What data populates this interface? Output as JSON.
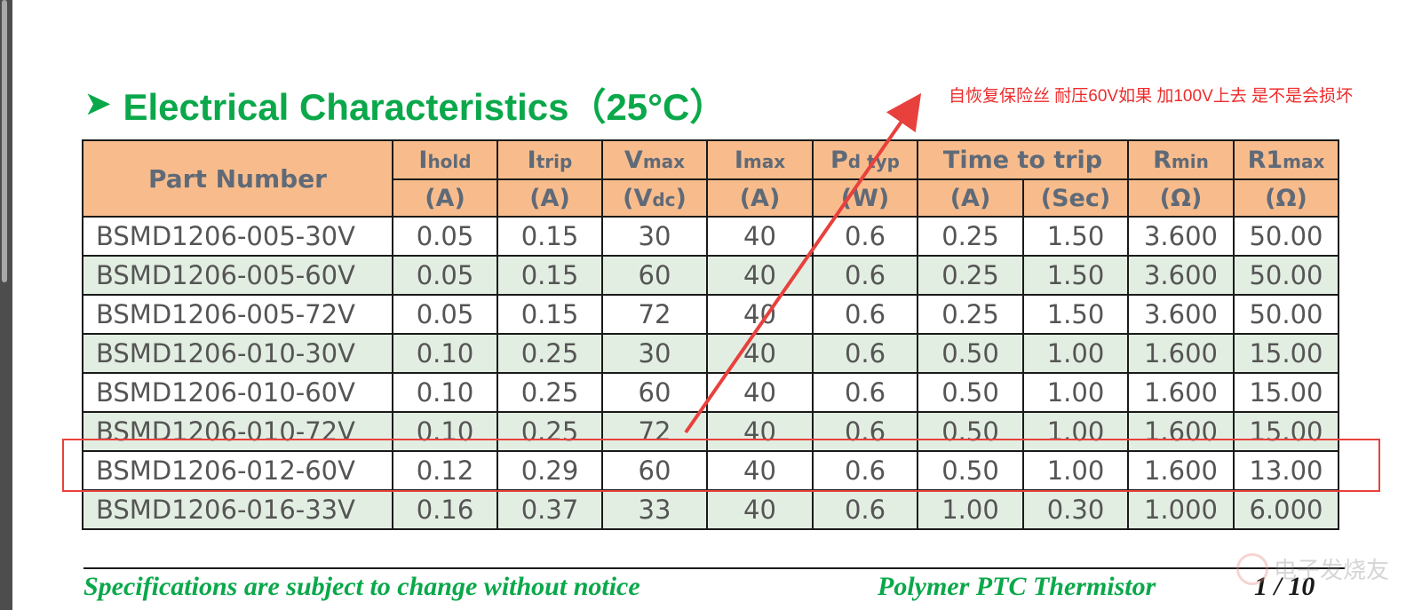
{
  "heading": {
    "bullet": "➤",
    "title": "Electrical Characteristics（25°C）"
  },
  "annotation_note": "自恢复保险丝 耐压60V如果 加100V上去  是不是会损坏",
  "table": {
    "header_row1": {
      "part_number": "Part Number",
      "ihold": {
        "main": "I",
        "sub": "hold"
      },
      "itrip": {
        "main": "I",
        "sub": "trip"
      },
      "vmax": {
        "main": "V",
        "sub": "max"
      },
      "imax": {
        "main": "I",
        "sub": "max"
      },
      "pd": {
        "main": "P",
        "sub": "d typ"
      },
      "time_to_trip": "Time to trip",
      "rmin": {
        "main": "R",
        "sub": "min"
      },
      "r1max": {
        "main": "R1",
        "sub": "max"
      }
    },
    "header_row2": {
      "ihold_unit": "(A)",
      "itrip_unit": "(A)",
      "vmax_unit": {
        "pre": "(V",
        "sub": "dc",
        "post": ")"
      },
      "imax_unit": "(A)",
      "pd_unit": "(W)",
      "ttt_current_unit": "(A)",
      "ttt_time_unit": "(Sec)",
      "rmin_unit": "(Ω)",
      "r1max_unit": "(Ω)"
    },
    "rows": [
      [
        "BSMD1206-005-30V",
        "0.05",
        "0.15",
        "30",
        "40",
        "0.6",
        "0.25",
        "1.50",
        "3.600",
        "50.00"
      ],
      [
        "BSMD1206-005-60V",
        "0.05",
        "0.15",
        "60",
        "40",
        "0.6",
        "0.25",
        "1.50",
        "3.600",
        "50.00"
      ],
      [
        "BSMD1206-005-72V",
        "0.05",
        "0.15",
        "72",
        "40",
        "0.6",
        "0.25",
        "1.50",
        "3.600",
        "50.00"
      ],
      [
        "BSMD1206-010-30V",
        "0.10",
        "0.25",
        "30",
        "40",
        "0.6",
        "0.50",
        "1.00",
        "1.600",
        "15.00"
      ],
      [
        "BSMD1206-010-60V",
        "0.10",
        "0.25",
        "60",
        "40",
        "0.6",
        "0.50",
        "1.00",
        "1.600",
        "15.00"
      ],
      [
        "BSMD1206-010-72V",
        "0.10",
        "0.25",
        "72",
        "40",
        "0.6",
        "0.50",
        "1.00",
        "1.600",
        "15.00"
      ],
      [
        "BSMD1206-012-60V",
        "0.12",
        "0.29",
        "60",
        "40",
        "0.6",
        "0.50",
        "1.00",
        "1.600",
        "13.00"
      ],
      [
        "BSMD1206-016-33V",
        "0.16",
        "0.37",
        "33",
        "40",
        "0.6",
        "1.00",
        "0.30",
        "1.000",
        "6.000"
      ]
    ]
  },
  "footer": {
    "left": "Specifications are subject to change without notice",
    "right": "Polymer PTC Thermistor",
    "page": "1 / 10"
  },
  "watermark": {
    "text": "电子发烧友"
  },
  "colors": {
    "heading_green": "#0aa84a",
    "header_fill": "#f8bc8c",
    "shaded_row": "#e3eee3",
    "annotation_red": "#e8413d"
  }
}
